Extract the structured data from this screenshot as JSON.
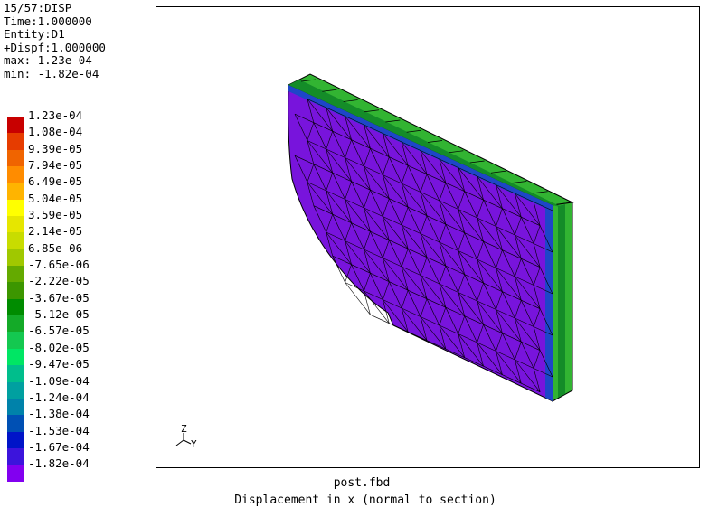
{
  "info": {
    "step": "15/57:DISP",
    "time": "Time:1.000000",
    "entity": "Entity:D1",
    "dispf": "+Dispf:1.000000",
    "max": "max: 1.23e-04",
    "min": "min: -1.82e-04"
  },
  "legend": [
    {
      "label": "1.23e-04",
      "color": "#c80000"
    },
    {
      "label": "1.08e-04",
      "color": "#e63c00"
    },
    {
      "label": "9.39e-05",
      "color": "#f06400"
    },
    {
      "label": "7.94e-05",
      "color": "#ff8c00"
    },
    {
      "label": "6.49e-05",
      "color": "#ffb400"
    },
    {
      "label": "5.04e-05",
      "color": "#ffff00"
    },
    {
      "label": "3.59e-05",
      "color": "#e6e600"
    },
    {
      "label": "2.14e-05",
      "color": "#c8dc00"
    },
    {
      "label": "6.85e-06",
      "color": "#a0c800"
    },
    {
      "label": "-7.65e-06",
      "color": "#64aa00"
    },
    {
      "label": "-2.22e-05",
      "color": "#3c9600"
    },
    {
      "label": "-3.67e-05",
      "color": "#008c00"
    },
    {
      "label": "-5.12e-05",
      "color": "#14aa28"
    },
    {
      "label": "-6.57e-05",
      "color": "#14c850"
    },
    {
      "label": "-8.02e-05",
      "color": "#00e664"
    },
    {
      "label": "-9.47e-05",
      "color": "#00be8c"
    },
    {
      "label": "-1.09e-04",
      "color": "#00a0a0"
    },
    {
      "label": "-1.24e-04",
      "color": "#0082aa"
    },
    {
      "label": "-1.38e-04",
      "color": "#0050b4"
    },
    {
      "label": "-1.53e-04",
      "color": "#0014c8"
    },
    {
      "label": "-1.67e-04",
      "color": "#3c14dc"
    },
    {
      "label": "-1.82e-04",
      "color": "#8200f0"
    }
  ],
  "triad": {
    "z": "Z",
    "y": "Y"
  },
  "caption": {
    "file": "post.fbd",
    "description": "Displacement in x (normal to section)"
  },
  "colors": {
    "face": "#7814dc",
    "edge_green": "#32b432",
    "edge_dark": "#148c28",
    "edge_blue": "#1e46c8"
  }
}
